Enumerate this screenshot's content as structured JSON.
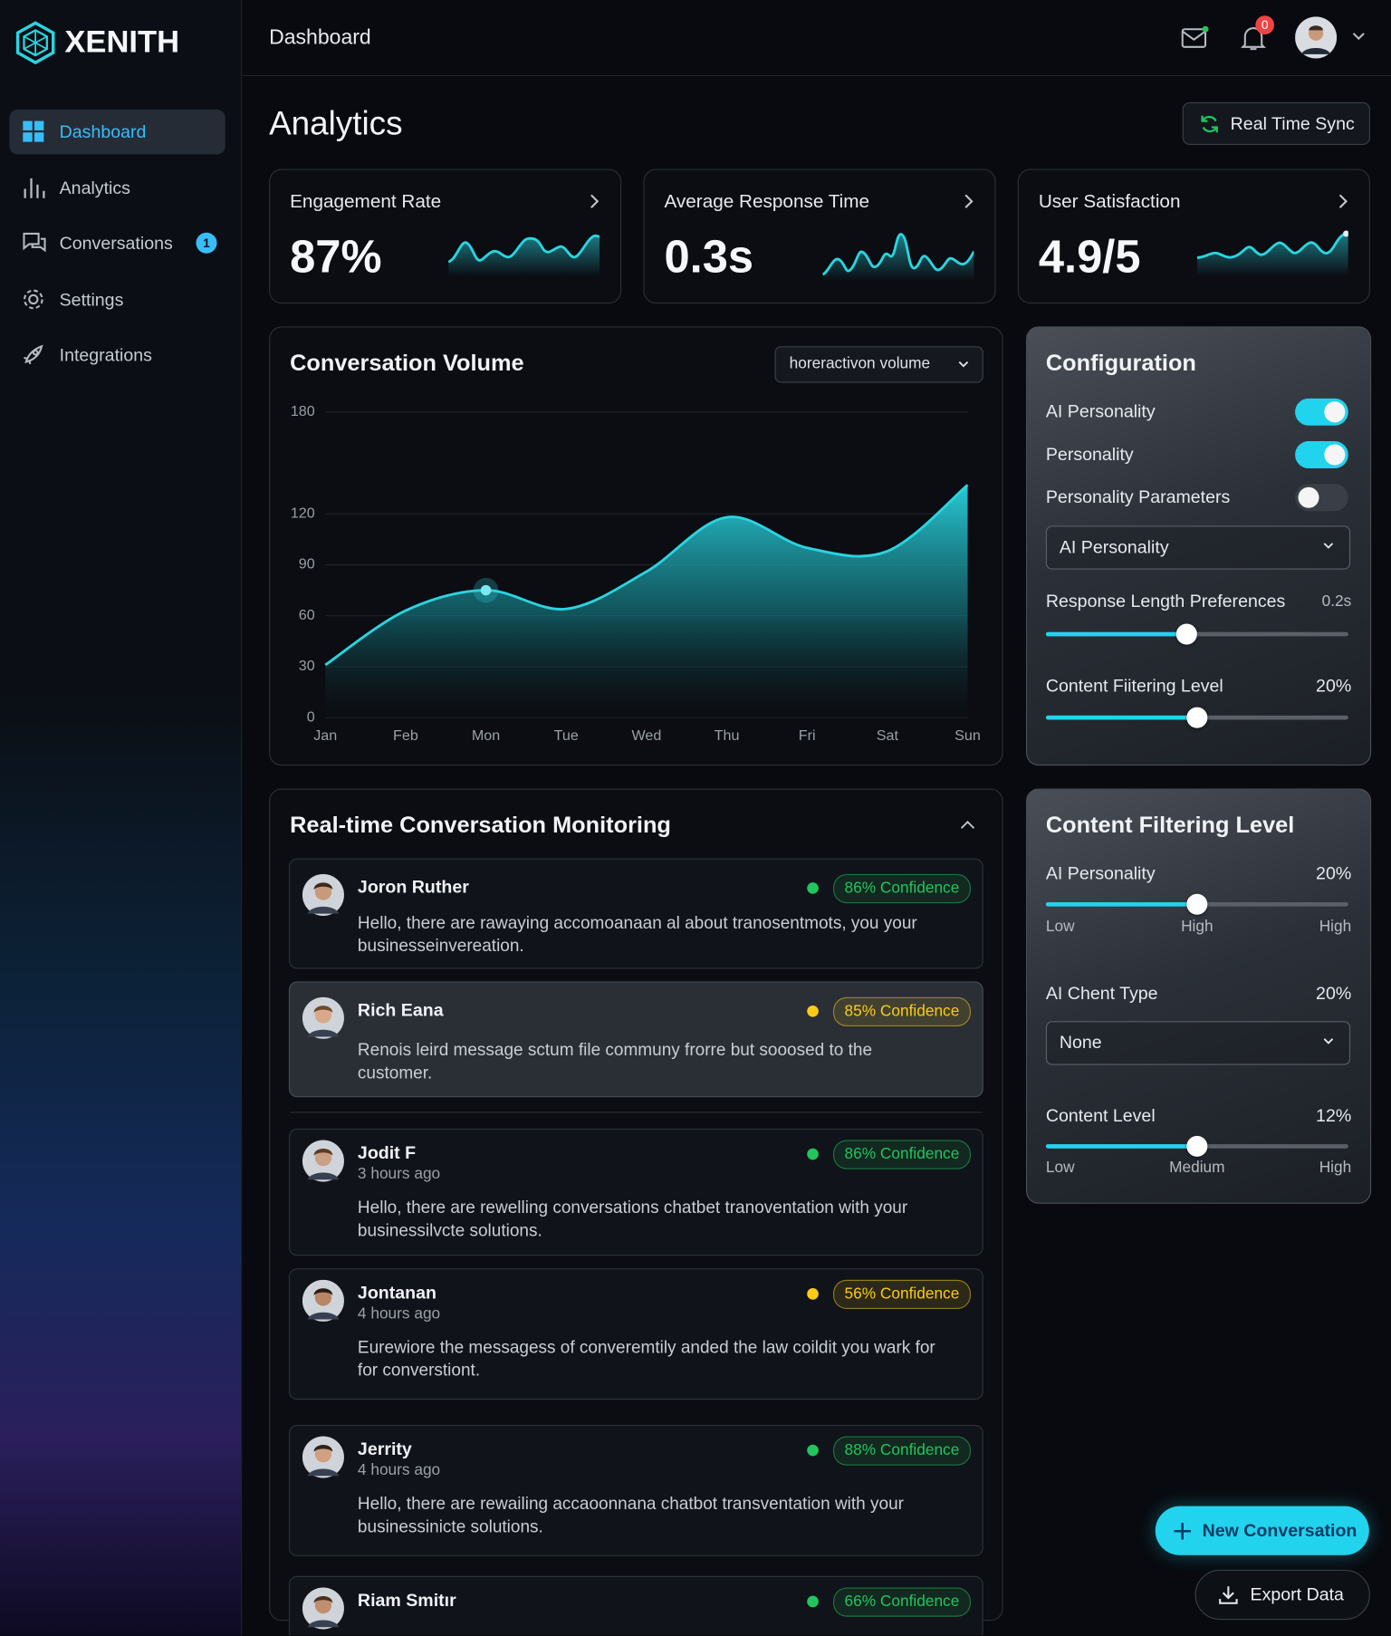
{
  "brand": "XENITH",
  "header": {
    "title": "Dashboard",
    "notification_count": 0
  },
  "sidebar": [
    {
      "label": "Dashboard",
      "active": true
    },
    {
      "label": "Analytics"
    },
    {
      "label": "Conversations",
      "badge": 1
    },
    {
      "label": "Settings"
    },
    {
      "label": "Integrations"
    }
  ],
  "page_title": "Analytics",
  "sync_button": "Real Time Sync",
  "metrics": [
    {
      "label": "Engagement Rate",
      "value": "87%"
    },
    {
      "label": "Average Response Time",
      "value": "0.3s"
    },
    {
      "label": "User Satisfaction",
      "value": "4.9/5"
    }
  ],
  "volume_selector": "horeractivon volume",
  "chart_data": {
    "type": "area",
    "title": "Conversation Volume",
    "categories": [
      "Jan",
      "Feb",
      "Mon",
      "Tue",
      "Wed",
      "Thu",
      "Fri",
      "Sat",
      "Sun"
    ],
    "values": [
      31,
      63,
      75,
      64,
      86,
      118,
      100,
      98,
      137
    ],
    "color": "#2ad4e0",
    "ylim": [
      0,
      180
    ],
    "yticks": [
      0,
      30,
      60,
      90,
      120,
      180
    ],
    "grid": true
  },
  "configuration": {
    "title": "Configuration",
    "toggles": [
      {
        "label": "AI Personality",
        "on": true
      },
      {
        "label": "Personality",
        "on": true
      },
      {
        "label": "Personality Parameters",
        "on": false
      }
    ],
    "select": "AI Personality",
    "response_length": {
      "label": "Response Length Preferences",
      "value": "0.2s"
    },
    "content_filtering": {
      "label": "Content Fiitering Level",
      "value": "20%"
    }
  },
  "content_filtering": {
    "title": "Content Filtering Level",
    "ai_personality": {
      "label": "AI Personality",
      "value": "20%",
      "scale": [
        "Low",
        "High",
        "High"
      ]
    },
    "client_type": {
      "label": "AI Chent Type",
      "value": "20%",
      "select": "None"
    },
    "content_level": {
      "label": "Content Level",
      "value": "12%",
      "scale": [
        "Low",
        "Medium",
        "High"
      ]
    }
  },
  "monitoring": {
    "title": "Real-time Conversation Monitoring",
    "conversations": [
      {
        "name": "Joron Ruther",
        "message": "Hello, there are rawaying accomoanaan al about tranosentmots, you your businesseinvereation.",
        "confidence": "86% Confidence",
        "status_color": "#22c55e"
      },
      {
        "name": "Rich Eana",
        "message": "Renois leird message sctum file communy frorre but sooosed to the customer.",
        "confidence": "85% Confidence",
        "status_color": "#facc15"
      },
      {
        "name": "Jodit F",
        "time": "3 hours ago",
        "message": "Hello, there are rewelling conversations chatbet tranoventation with your businessilvcte solutions.",
        "confidence": "86% Confidence",
        "status_color": "#22c55e"
      },
      {
        "name": "Jontanan",
        "time": "4 hours ago",
        "message": "Eurewiore the messagess of converemtily anded the law coildit you wark for for converstiont.",
        "confidence": "56% Confidence",
        "status_color": "#facc15"
      },
      {
        "name": "Jerrity",
        "time": "4 hours ago",
        "message": "Hello, there are rewailing accaoonnana chatbot transventation with your businessinicte solutions.",
        "confidence": "88% Confidence",
        "status_color": "#22c55e"
      },
      {
        "name": "Riam Smitır",
        "confidence": "66% Confidence",
        "status_color": "#22c55e"
      }
    ]
  },
  "actions": {
    "new_conversation": "New Conversation",
    "export": "Export Data"
  }
}
